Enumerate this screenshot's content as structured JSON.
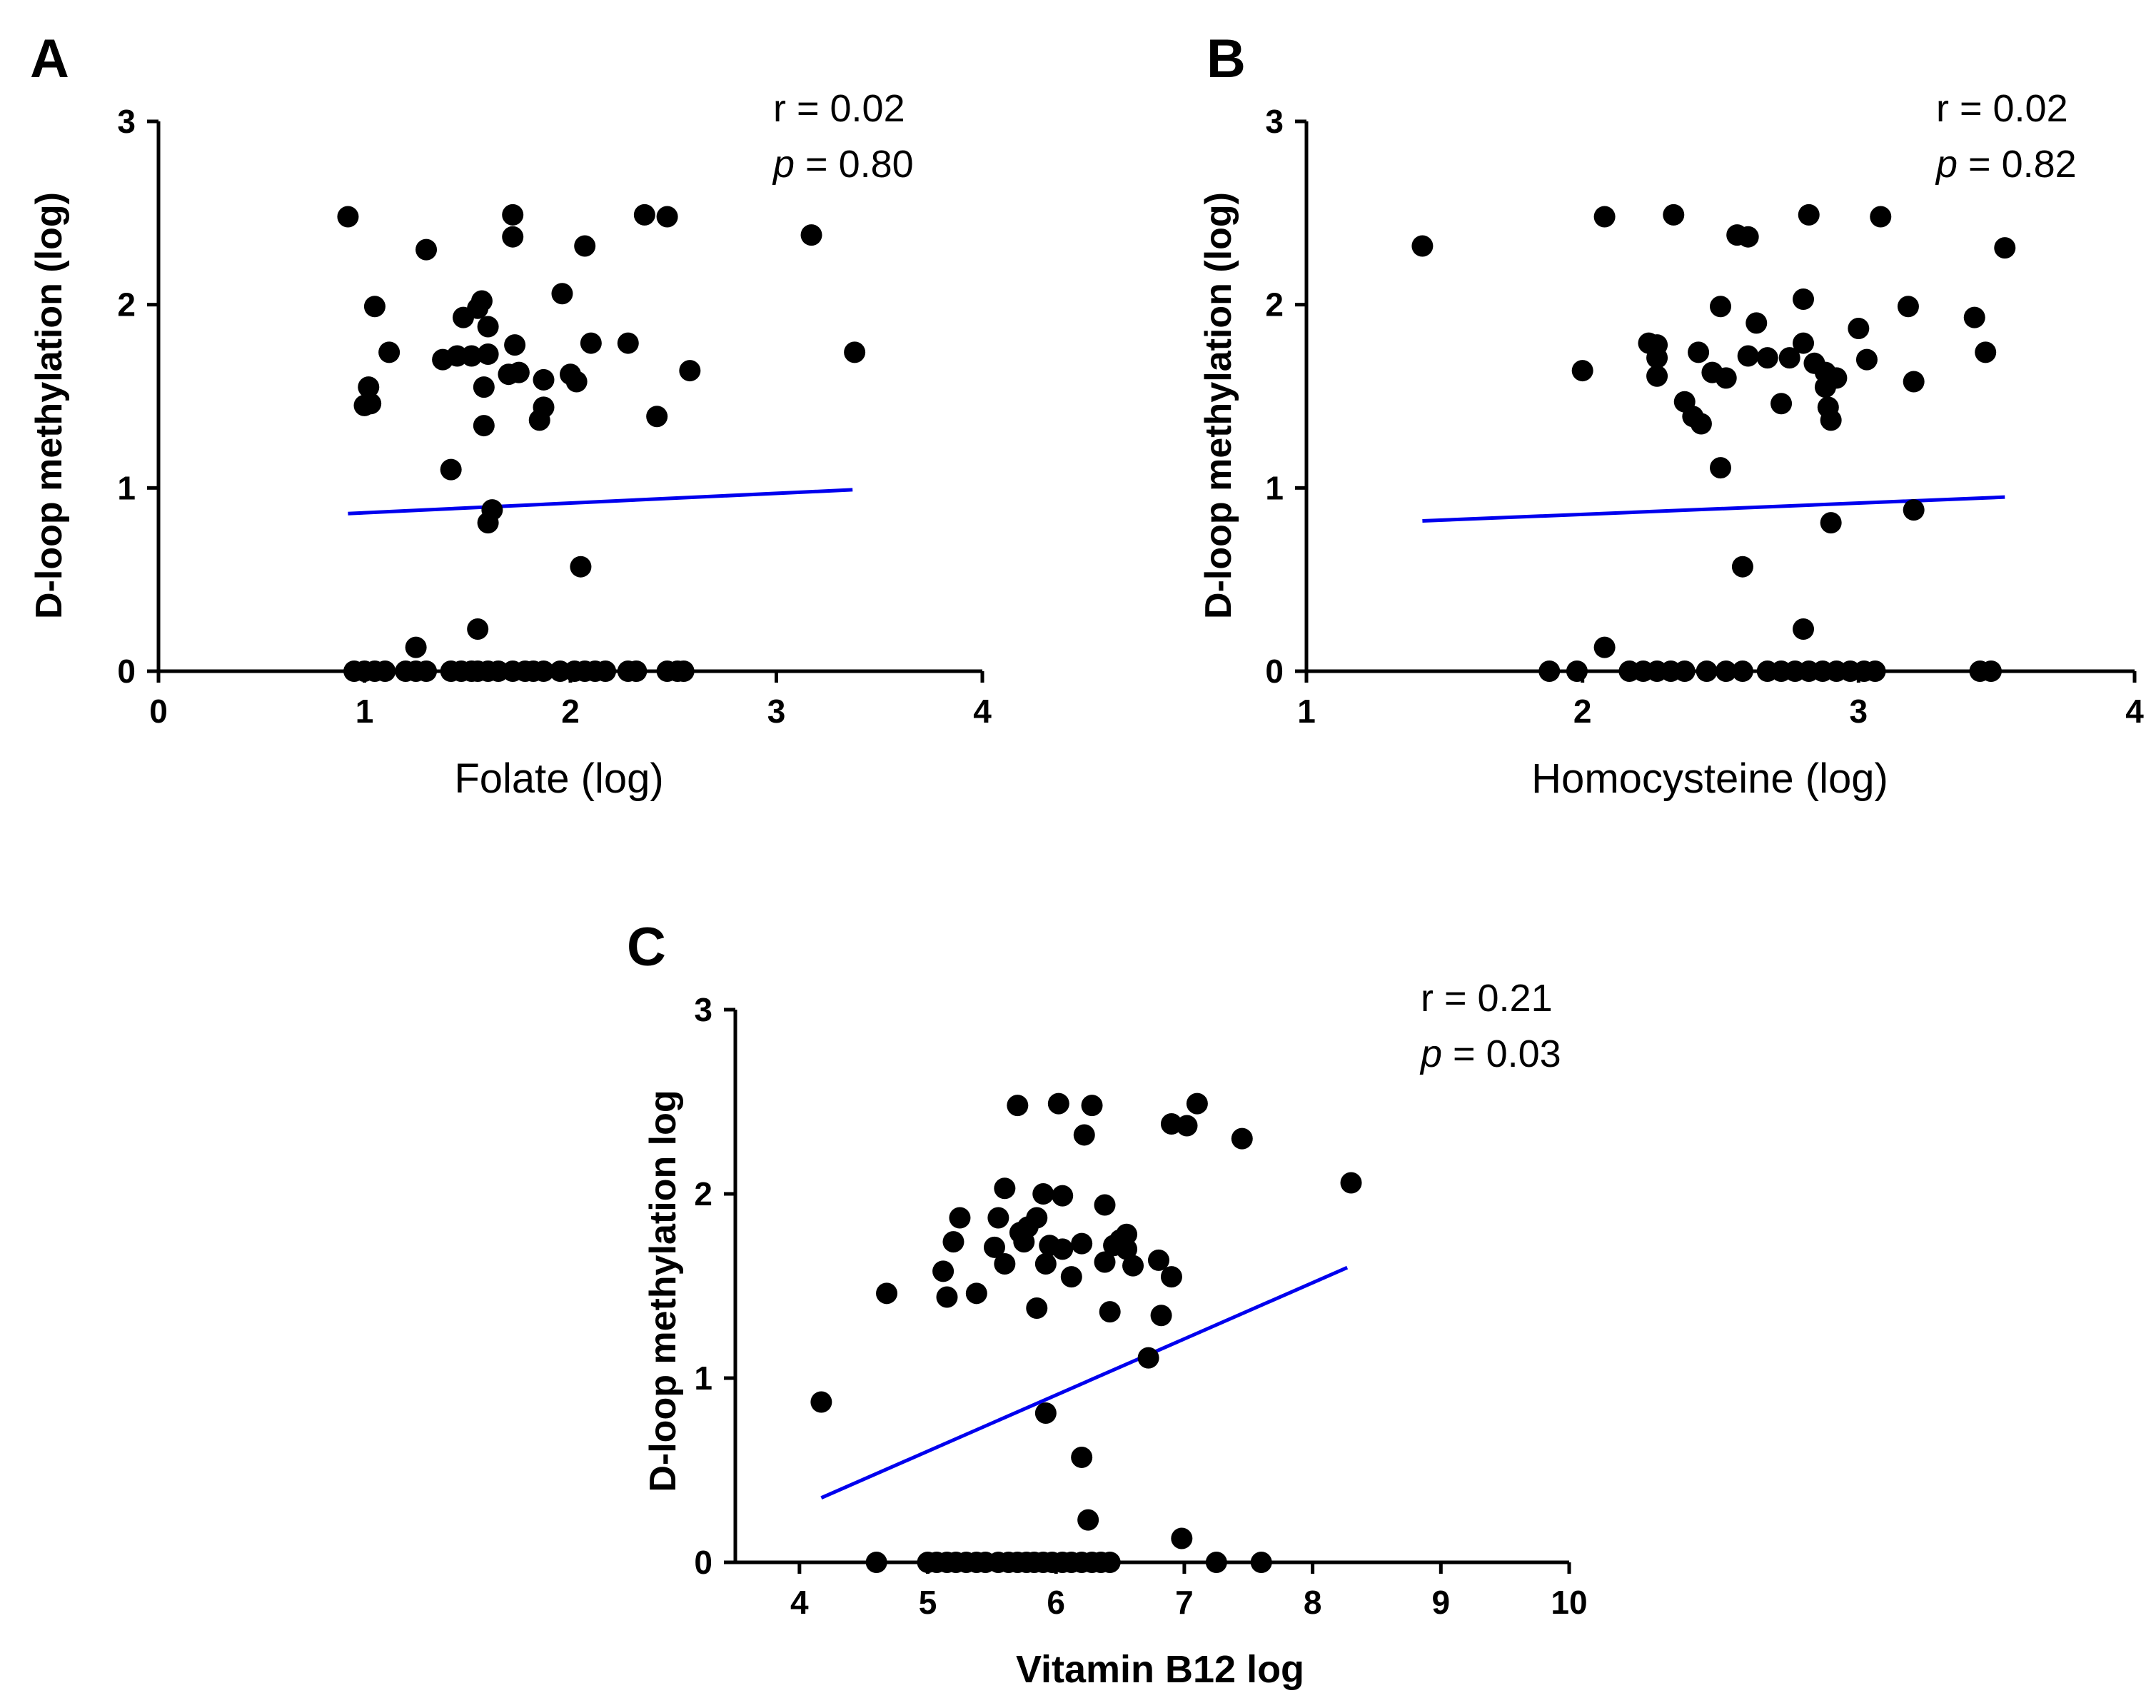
{
  "chart_data": [
    {
      "panel": "A",
      "type": "scatter",
      "xlabel": "Folate (log)",
      "ylabel": "D-loop methylation (log)",
      "xlim": [
        0,
        4
      ],
      "ylim": [
        0,
        3
      ],
      "xticks": [
        "0",
        "1",
        "2",
        "3",
        "4"
      ],
      "yticks": [
        "0",
        "1",
        "2",
        "3"
      ],
      "stats": {
        "r": "r = 0.02",
        "p_symbol": "p",
        "p_rest": " = 0.80"
      },
      "fit_line": [
        [
          0.92,
          0.86
        ],
        [
          3.37,
          0.99
        ]
      ],
      "points": [
        [
          0.92,
          2.48
        ],
        [
          1.05,
          1.99
        ],
        [
          1.0,
          1.45
        ],
        [
          1.02,
          1.55
        ],
        [
          1.03,
          1.46
        ],
        [
          1.12,
          1.74
        ],
        [
          1.3,
          2.3
        ],
        [
          1.38,
          1.7
        ],
        [
          1.42,
          1.1
        ],
        [
          1.45,
          1.72
        ],
        [
          1.48,
          1.93
        ],
        [
          1.52,
          1.72
        ],
        [
          1.55,
          1.98
        ],
        [
          1.57,
          2.02
        ],
        [
          1.58,
          1.55
        ],
        [
          1.58,
          1.34
        ],
        [
          1.6,
          1.88
        ],
        [
          1.6,
          1.73
        ],
        [
          1.6,
          0.81
        ],
        [
          1.62,
          0.88
        ],
        [
          1.55,
          0.23
        ],
        [
          1.25,
          0.13
        ],
        [
          1.72,
          2.49
        ],
        [
          1.72,
          2.37
        ],
        [
          1.7,
          1.62
        ],
        [
          1.73,
          1.78
        ],
        [
          1.75,
          1.63
        ],
        [
          1.87,
          1.59
        ],
        [
          1.87,
          1.44
        ],
        [
          1.85,
          1.37
        ],
        [
          1.96,
          2.06
        ],
        [
          2.0,
          1.62
        ],
        [
          2.03,
          1.58
        ],
        [
          2.07,
          2.32
        ],
        [
          2.1,
          1.79
        ],
        [
          2.05,
          0.57
        ],
        [
          2.28,
          1.79
        ],
        [
          2.36,
          2.49
        ],
        [
          2.42,
          1.39
        ],
        [
          2.47,
          2.48
        ],
        [
          2.58,
          1.64
        ],
        [
          3.17,
          2.38
        ],
        [
          3.38,
          1.74
        ],
        [
          0.95,
          0
        ],
        [
          1.0,
          0
        ],
        [
          1.05,
          0
        ],
        [
          1.1,
          0
        ],
        [
          1.2,
          0
        ],
        [
          1.25,
          0
        ],
        [
          1.3,
          0
        ],
        [
          1.42,
          0
        ],
        [
          1.47,
          0
        ],
        [
          1.52,
          0
        ],
        [
          1.55,
          0
        ],
        [
          1.6,
          0
        ],
        [
          1.65,
          0
        ],
        [
          1.72,
          0
        ],
        [
          1.78,
          0
        ],
        [
          1.82,
          0
        ],
        [
          1.87,
          0
        ],
        [
          1.95,
          0
        ],
        [
          2.02,
          0
        ],
        [
          2.07,
          0
        ],
        [
          2.12,
          0
        ],
        [
          2.17,
          0
        ],
        [
          2.28,
          0
        ],
        [
          2.32,
          0
        ],
        [
          2.47,
          0
        ],
        [
          2.52,
          0
        ],
        [
          2.55,
          0
        ]
      ]
    },
    {
      "panel": "B",
      "type": "scatter",
      "xlabel": "Homocysteine (log)",
      "ylabel": "D-loop methylation (log)",
      "xlim": [
        1,
        4
      ],
      "ylim": [
        0,
        3
      ],
      "xticks": [
        "1",
        "2",
        "3",
        "4"
      ],
      "yticks": [
        "0",
        "1",
        "2",
        "3"
      ],
      "stats": {
        "r": "r = 0.02",
        "p_symbol": "p",
        "p_rest": " = 0.82"
      },
      "fit_line": [
        [
          1.42,
          0.82
        ],
        [
          3.53,
          0.95
        ]
      ],
      "points": [
        [
          1.42,
          2.32
        ],
        [
          2.0,
          1.64
        ],
        [
          2.08,
          2.48
        ],
        [
          2.08,
          0.13
        ],
        [
          2.24,
          1.79
        ],
        [
          2.27,
          1.78
        ],
        [
          2.27,
          1.71
        ],
        [
          2.27,
          1.61
        ],
        [
          2.33,
          2.49
        ],
        [
          2.37,
          1.47
        ],
        [
          2.4,
          1.39
        ],
        [
          2.43,
          1.35
        ],
        [
          2.42,
          1.74
        ],
        [
          2.47,
          1.63
        ],
        [
          2.5,
          1.99
        ],
        [
          2.52,
          1.6
        ],
        [
          2.5,
          1.11
        ],
        [
          2.56,
          2.38
        ],
        [
          2.6,
          2.37
        ],
        [
          2.6,
          1.72
        ],
        [
          2.63,
          1.9
        ],
        [
          2.58,
          0.57
        ],
        [
          2.67,
          1.71
        ],
        [
          2.72,
          1.46
        ],
        [
          2.75,
          1.71
        ],
        [
          2.8,
          2.03
        ],
        [
          2.8,
          1.79
        ],
        [
          2.82,
          2.49
        ],
        [
          2.84,
          1.68
        ],
        [
          2.8,
          0.23
        ],
        [
          2.88,
          1.63
        ],
        [
          2.88,
          1.55
        ],
        [
          2.89,
          1.44
        ],
        [
          2.9,
          1.37
        ],
        [
          2.92,
          1.6
        ],
        [
          2.9,
          0.81
        ],
        [
          3.0,
          1.87
        ],
        [
          3.03,
          1.7
        ],
        [
          3.08,
          2.48
        ],
        [
          3.18,
          1.99
        ],
        [
          3.2,
          1.58
        ],
        [
          3.2,
          0.88
        ],
        [
          3.42,
          1.93
        ],
        [
          3.46,
          1.74
        ],
        [
          3.53,
          2.31
        ],
        [
          1.88,
          0
        ],
        [
          1.98,
          0
        ],
        [
          2.17,
          0
        ],
        [
          2.22,
          0
        ],
        [
          2.27,
          0
        ],
        [
          2.32,
          0
        ],
        [
          2.37,
          0
        ],
        [
          2.45,
          0
        ],
        [
          2.52,
          0
        ],
        [
          2.58,
          0
        ],
        [
          2.67,
          0
        ],
        [
          2.72,
          0
        ],
        [
          2.77,
          0
        ],
        [
          2.82,
          0
        ],
        [
          2.87,
          0
        ],
        [
          2.92,
          0
        ],
        [
          2.97,
          0
        ],
        [
          3.02,
          0
        ],
        [
          3.06,
          0
        ],
        [
          3.44,
          0
        ],
        [
          3.48,
          0
        ]
      ]
    },
    {
      "panel": "C",
      "type": "scatter",
      "xlabel": "Vitamin B12 log",
      "ylabel": "D-loop methylation log",
      "xlim": [
        3.5,
        10
      ],
      "ylim": [
        0,
        3
      ],
      "xticks": [
        "4",
        "5",
        "6",
        "7",
        "8",
        "9",
        "10"
      ],
      "yticks": [
        "0",
        "1",
        "2",
        "3"
      ],
      "stats": {
        "r": "r = 0.21",
        "p_symbol": "p",
        "p_rest": " = 0.03"
      },
      "fit_line": [
        [
          4.17,
          0.35
        ],
        [
          8.27,
          1.6
        ]
      ],
      "points": [
        [
          4.17,
          0.87
        ],
        [
          4.68,
          1.46
        ],
        [
          5.12,
          1.58
        ],
        [
          5.15,
          1.44
        ],
        [
          5.2,
          1.74
        ],
        [
          5.25,
          1.87
        ],
        [
          5.38,
          1.46
        ],
        [
          5.52,
          1.71
        ],
        [
          5.55,
          1.87
        ],
        [
          5.6,
          2.03
        ],
        [
          5.6,
          1.62
        ],
        [
          5.7,
          2.48
        ],
        [
          5.72,
          1.79
        ],
        [
          5.75,
          1.74
        ],
        [
          5.78,
          1.82
        ],
        [
          5.85,
          1.87
        ],
        [
          5.85,
          1.38
        ],
        [
          5.9,
          2.0
        ],
        [
          5.92,
          1.62
        ],
        [
          5.95,
          1.72
        ],
        [
          5.92,
          0.81
        ],
        [
          6.02,
          2.49
        ],
        [
          6.05,
          1.99
        ],
        [
          6.05,
          1.7
        ],
        [
          6.12,
          1.55
        ],
        [
          6.2,
          1.73
        ],
        [
          6.22,
          2.32
        ],
        [
          6.28,
          2.48
        ],
        [
          6.2,
          0.57
        ],
        [
          6.25,
          0.23
        ],
        [
          6.38,
          1.94
        ],
        [
          6.38,
          1.63
        ],
        [
          6.42,
          1.36
        ],
        [
          6.45,
          1.72
        ],
        [
          6.5,
          1.75
        ],
        [
          6.55,
          1.78
        ],
        [
          6.6,
          1.61
        ],
        [
          6.55,
          1.7
        ],
        [
          6.72,
          1.11
        ],
        [
          6.8,
          1.64
        ],
        [
          6.82,
          1.34
        ],
        [
          6.9,
          1.55
        ],
        [
          6.9,
          2.38
        ],
        [
          7.02,
          2.37
        ],
        [
          7.1,
          2.49
        ],
        [
          7.45,
          2.3
        ],
        [
          6.98,
          0.13
        ],
        [
          8.3,
          2.06
        ],
        [
          4.6,
          0
        ],
        [
          5.0,
          0
        ],
        [
          5.07,
          0
        ],
        [
          5.15,
          0
        ],
        [
          5.22,
          0
        ],
        [
          5.3,
          0
        ],
        [
          5.38,
          0
        ],
        [
          5.45,
          0
        ],
        [
          5.55,
          0
        ],
        [
          5.63,
          0
        ],
        [
          5.7,
          0
        ],
        [
          5.77,
          0
        ],
        [
          5.83,
          0
        ],
        [
          5.9,
          0
        ],
        [
          5.97,
          0
        ],
        [
          6.05,
          0
        ],
        [
          6.12,
          0
        ],
        [
          6.2,
          0
        ],
        [
          6.28,
          0
        ],
        [
          6.35,
          0
        ],
        [
          6.42,
          0
        ],
        [
          7.25,
          0
        ],
        [
          7.6,
          0
        ]
      ]
    }
  ]
}
